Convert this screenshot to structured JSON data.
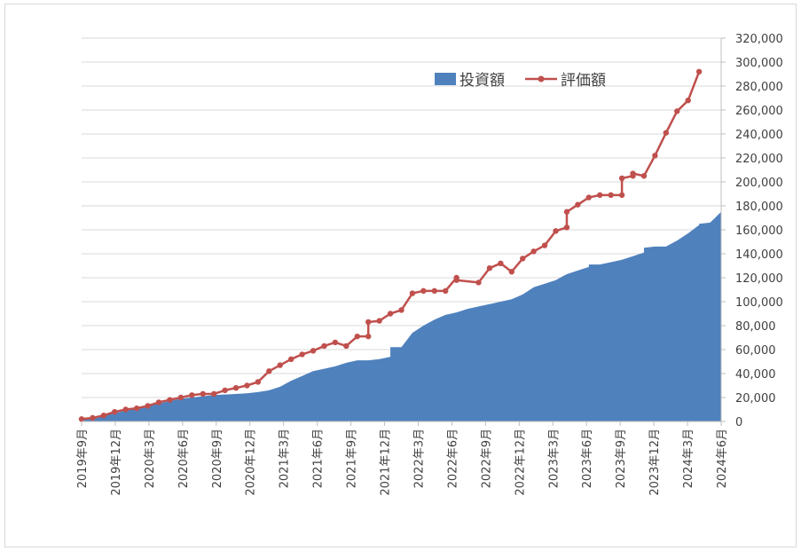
{
  "chart_data": {
    "type": "area",
    "title": "",
    "xlabel": "",
    "ylabel": "",
    "ylim": [
      0,
      320000
    ],
    "yticks": [
      "0",
      "20,000",
      "40,000",
      "60,000",
      "80,000",
      "100,000",
      "120,000",
      "140,000",
      "160,000",
      "180,000",
      "200,000",
      "220,000",
      "240,000",
      "260,000",
      "280,000",
      "300,000",
      "320,000"
    ],
    "y_axis_side": "right",
    "grid": true,
    "legend_position": "top-right",
    "categories": [
      "2019年9月",
      "2019年12月",
      "2020年3月",
      "2020年6月",
      "2020年9月",
      "2020年12月",
      "2021年3月",
      "2021年6月",
      "2021年9月",
      "2021年12月",
      "2022年3月",
      "2022年6月",
      "2022年9月",
      "2022年12月",
      "2023年3月",
      "2023年6月",
      "2023年9月",
      "2023年12月",
      "2024年3月",
      "2024年6月"
    ],
    "series": [
      {
        "name": "投資額",
        "type": "area",
        "color": "#4f81bd",
        "points": [
          [
            0,
            1000
          ],
          [
            1,
            3000
          ],
          [
            2,
            5000
          ],
          [
            3,
            7000
          ],
          [
            4,
            9000
          ],
          [
            5,
            11000
          ],
          [
            6,
            13000
          ],
          [
            7,
            15000
          ],
          [
            8,
            17000
          ],
          [
            9,
            19000
          ],
          [
            10,
            20000
          ],
          [
            11,
            21000
          ],
          [
            12,
            22000
          ],
          [
            13,
            22500
          ],
          [
            14,
            23000
          ],
          [
            15,
            23500
          ],
          [
            16,
            24500
          ],
          [
            17,
            26000
          ],
          [
            18,
            29000
          ],
          [
            19,
            34000
          ],
          [
            20,
            38000
          ],
          [
            21,
            42000
          ],
          [
            22,
            44000
          ],
          [
            23,
            46000
          ],
          [
            24,
            49000
          ],
          [
            25,
            51000
          ],
          [
            26,
            51000
          ],
          [
            27,
            52000
          ],
          [
            28,
            54000
          ],
          [
            28,
            62000
          ],
          [
            29,
            62000
          ],
          [
            30,
            74000
          ],
          [
            31,
            80000
          ],
          [
            32,
            85000
          ],
          [
            33,
            89000
          ],
          [
            34,
            91000
          ],
          [
            35,
            94000
          ],
          [
            36,
            96000
          ],
          [
            37,
            98000
          ],
          [
            38,
            100000
          ],
          [
            39,
            102000
          ],
          [
            40,
            106000
          ],
          [
            41,
            112000
          ],
          [
            42,
            115000
          ],
          [
            43,
            118000
          ],
          [
            44,
            123000
          ],
          [
            45,
            126000
          ],
          [
            46,
            129000
          ],
          [
            46,
            131000
          ],
          [
            47,
            131000
          ],
          [
            48,
            133000
          ],
          [
            49,
            135000
          ],
          [
            50,
            138000
          ],
          [
            51,
            141000
          ],
          [
            51,
            145000
          ],
          [
            52,
            146000
          ],
          [
            53,
            146000
          ],
          [
            54,
            151000
          ],
          [
            55,
            157000
          ],
          [
            56,
            164000
          ],
          [
            56,
            165000
          ],
          [
            57,
            166000
          ],
          [
            58,
            175000
          ]
        ]
      },
      {
        "name": "評価額",
        "type": "line",
        "color": "#c0504d",
        "points": [
          [
            0,
            2000
          ],
          [
            1,
            3000
          ],
          [
            2,
            5000
          ],
          [
            3,
            8000
          ],
          [
            4,
            10000
          ],
          [
            5,
            11000
          ],
          [
            6,
            13000
          ],
          [
            7,
            16000
          ],
          [
            8,
            18000
          ],
          [
            9,
            20000
          ],
          [
            10,
            22000
          ],
          [
            11,
            23000
          ],
          [
            12,
            23000
          ],
          [
            13,
            26000
          ],
          [
            14,
            28000
          ],
          [
            15,
            30000
          ],
          [
            16,
            33000
          ],
          [
            17,
            42000
          ],
          [
            18,
            47000
          ],
          [
            19,
            52000
          ],
          [
            20,
            56000
          ],
          [
            21,
            59000
          ],
          [
            22,
            63000
          ],
          [
            23,
            66000
          ],
          [
            24,
            63000
          ],
          [
            25,
            71000
          ],
          [
            26,
            71000
          ],
          [
            26,
            83000
          ],
          [
            27,
            84000
          ],
          [
            28,
            90000
          ],
          [
            29,
            93000
          ],
          [
            30,
            107000
          ],
          [
            31,
            109000
          ],
          [
            32,
            109000
          ],
          [
            33,
            109000
          ],
          [
            34,
            120000
          ],
          [
            34,
            118000
          ],
          [
            36,
            116000
          ],
          [
            37,
            128000
          ],
          [
            38,
            132000
          ],
          [
            39,
            125000
          ],
          [
            40,
            136000
          ],
          [
            41,
            142000
          ],
          [
            42,
            147000
          ],
          [
            43,
            159000
          ],
          [
            44,
            162000
          ],
          [
            44,
            175000
          ],
          [
            45,
            181000
          ],
          [
            46,
            187000
          ],
          [
            47,
            189000
          ],
          [
            48,
            189000
          ],
          [
            49,
            189000
          ],
          [
            49,
            203000
          ],
          [
            50,
            205000
          ],
          [
            50,
            207000
          ],
          [
            51,
            205000
          ],
          [
            52,
            222000
          ],
          [
            53,
            241000
          ],
          [
            54,
            259000
          ],
          [
            55,
            268000
          ],
          [
            56,
            292000
          ]
        ]
      }
    ]
  }
}
